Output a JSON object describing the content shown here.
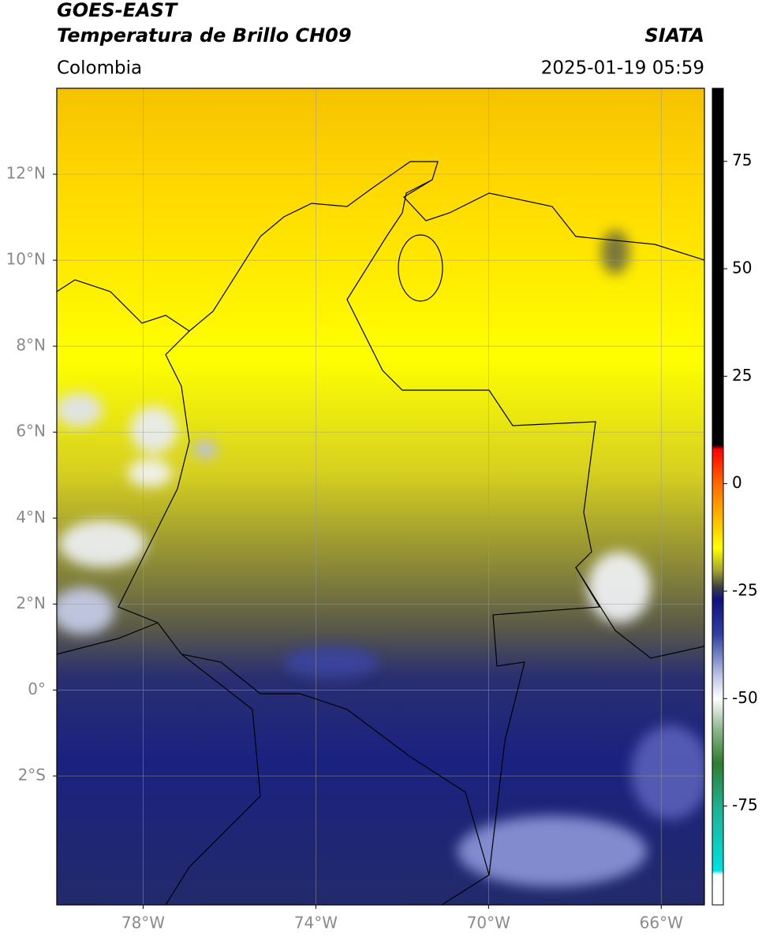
{
  "header": {
    "satellite": "GOES-EAST",
    "product": "Temperatura de Brillo CH09",
    "source": "SIATA",
    "region": "Colombia",
    "datetime": "2025-01-19 05:59"
  },
  "map": {
    "lonlim": [
      -80,
      -65
    ],
    "latlim": [
      -5,
      14
    ],
    "grid": true,
    "lon_ticks": [
      {
        "value": -78,
        "label": "78°W"
      },
      {
        "value": -74,
        "label": "74°W"
      },
      {
        "value": -70,
        "label": "70°W"
      },
      {
        "value": -66,
        "label": "66°W"
      }
    ],
    "lat_ticks": [
      {
        "value": 12,
        "label": "12°N"
      },
      {
        "value": 10,
        "label": "10°N"
      },
      {
        "value": 8,
        "label": "8°N"
      },
      {
        "value": 6,
        "label": "6°N"
      },
      {
        "value": 4,
        "label": "4°N"
      },
      {
        "value": 2,
        "label": "2°N"
      },
      {
        "value": 0,
        "label": "0°"
      },
      {
        "value": -2,
        "label": "2°S"
      }
    ]
  },
  "colorbar": {
    "lim": [
      -98,
      92
    ],
    "ticks": [
      75,
      50,
      25,
      0,
      -25,
      -50,
      -75
    ],
    "stops": [
      {
        "value": 92,
        "color": "#000000"
      },
      {
        "value": 9,
        "color": "#000000"
      },
      {
        "value": 8,
        "color": "#ff0000"
      },
      {
        "value": 0,
        "color": "#ff6a00"
      },
      {
        "value": -10,
        "color": "#ffcc00"
      },
      {
        "value": -15,
        "color": "#ffff00"
      },
      {
        "value": -20,
        "color": "#a8a830"
      },
      {
        "value": -24,
        "color": "#404040"
      },
      {
        "value": -27,
        "color": "#101080"
      },
      {
        "value": -35,
        "color": "#3040a0"
      },
      {
        "value": -45,
        "color": "#c0c8e8"
      },
      {
        "value": -50,
        "color": "#ffffff"
      },
      {
        "value": -57,
        "color": "#90b890"
      },
      {
        "value": -65,
        "color": "#2e7d2e"
      },
      {
        "value": -75,
        "color": "#20b090"
      },
      {
        "value": -90,
        "color": "#00e0e0"
      },
      {
        "value": -91,
        "color": "#ffffff"
      },
      {
        "value": -98,
        "color": "#ffffff"
      }
    ]
  }
}
